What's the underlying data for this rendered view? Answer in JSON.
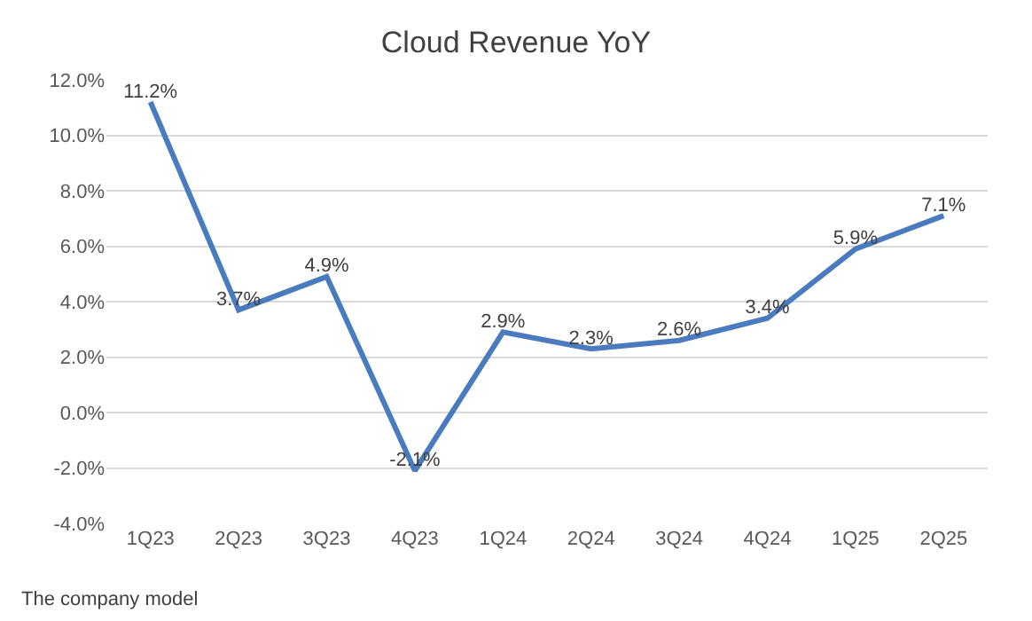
{
  "chart_data": {
    "type": "line",
    "title": "Cloud Revenue YoY",
    "categories": [
      "1Q23",
      "2Q23",
      "3Q23",
      "4Q23",
      "1Q24",
      "2Q24",
      "3Q24",
      "4Q24",
      "1Q25",
      "2Q25"
    ],
    "series": [
      {
        "color": "#4a7bbf",
        "values": [
          11.2,
          3.7,
          4.9,
          -2.1,
          2.9,
          2.3,
          2.6,
          3.4,
          5.9,
          7.1
        ],
        "value_labels": [
          "11.2%",
          "3.7%",
          "4.9%",
          "-2.1%",
          "2.9%",
          "2.3%",
          "2.6%",
          "3.4%",
          "5.9%",
          "7.1%"
        ]
      }
    ],
    "ylim": [
      -4,
      12
    ],
    "yticks": [
      {
        "value": -4,
        "label": "-4.0%"
      },
      {
        "value": -2,
        "label": "-2.0%"
      },
      {
        "value": 0,
        "label": "0.0%"
      },
      {
        "value": 2,
        "label": "2.0%"
      },
      {
        "value": 4,
        "label": "4.0%"
      },
      {
        "value": 6,
        "label": "6.0%"
      },
      {
        "value": 8,
        "label": "8.0%"
      },
      {
        "value": 10,
        "label": "10.0%"
      },
      {
        "value": 12,
        "label": "12.0%"
      }
    ],
    "grid": "y",
    "legend": false,
    "marker": "none",
    "line_style": "solid",
    "annotations": [
      "The company model"
    ]
  }
}
